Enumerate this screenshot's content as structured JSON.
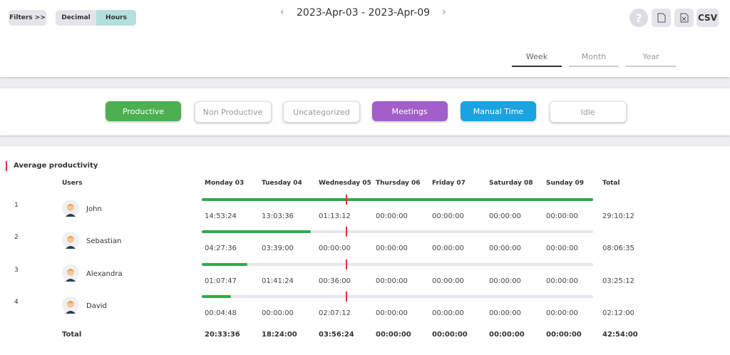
{
  "header": {
    "filters": "Filters >>",
    "units": [
      "Decimal",
      "Hours"
    ],
    "date_range": "2023-Apr-03 - 2023-Apr-09",
    "help": "?",
    "exports": [
      "CSV"
    ],
    "periods": [
      "Week",
      "Month",
      "Year"
    ]
  },
  "categories": [
    "Productive",
    "Non Productive",
    "Uncategorized",
    "Meetings",
    "Manual Time",
    "Idle"
  ],
  "table": {
    "title": "Average productivity",
    "columns": [
      "Users",
      "Monday 03",
      "Tuesday 04",
      "Wednesday 05",
      "Thursday 06",
      "Friday 07",
      "Saturday 08",
      "Sunday 09",
      "Total"
    ],
    "rows": [
      {
        "rank": "1",
        "name": "John",
        "times": [
          "14:53:24",
          "13:03:36",
          "01:13:12",
          "00:00:00",
          "00:00:00",
          "00:00:00",
          "00:00:00"
        ],
        "total": "29:10:12"
      },
      {
        "rank": "2",
        "name": "Sebastian",
        "times": [
          "04:27:36",
          "03:39:00",
          "00:00:00",
          "00:00:00",
          "00:00:00",
          "00:00:00",
          "00:00:00"
        ],
        "total": "08:06:35"
      },
      {
        "rank": "3",
        "name": "Alexandra",
        "times": [
          "01:07:47",
          "01:41:24",
          "00:36:00",
          "00:00:00",
          "00:00:00",
          "00:00:00",
          "00:00:00"
        ],
        "total": "03:25:12"
      },
      {
        "rank": "4",
        "name": "David",
        "times": [
          "00:04:48",
          "00:00:00",
          "02:07:12",
          "00:00:00",
          "00:00:00",
          "00:00:00",
          "00:00:00"
        ],
        "total": "02:12:00"
      }
    ],
    "footer": {
      "label": "Total",
      "times": [
        "20:33:36",
        "18:24:00",
        "03:56:24",
        "00:00:00",
        "00:00:00",
        "00:00:00",
        "00:00:00"
      ],
      "total": "42:54:00"
    }
  }
}
